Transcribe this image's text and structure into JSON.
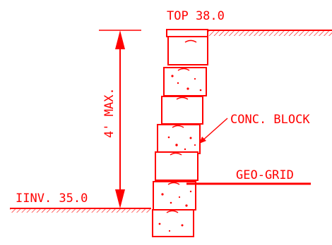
{
  "labels": {
    "top": "TOP 38.0",
    "invert": "IINV. 35.0",
    "height": "4' MAX.",
    "block": "CONC. BLOCK",
    "grid": "GEO-GRID"
  },
  "colors": {
    "linework": "#ff0000",
    "background": "#ffffff"
  }
}
